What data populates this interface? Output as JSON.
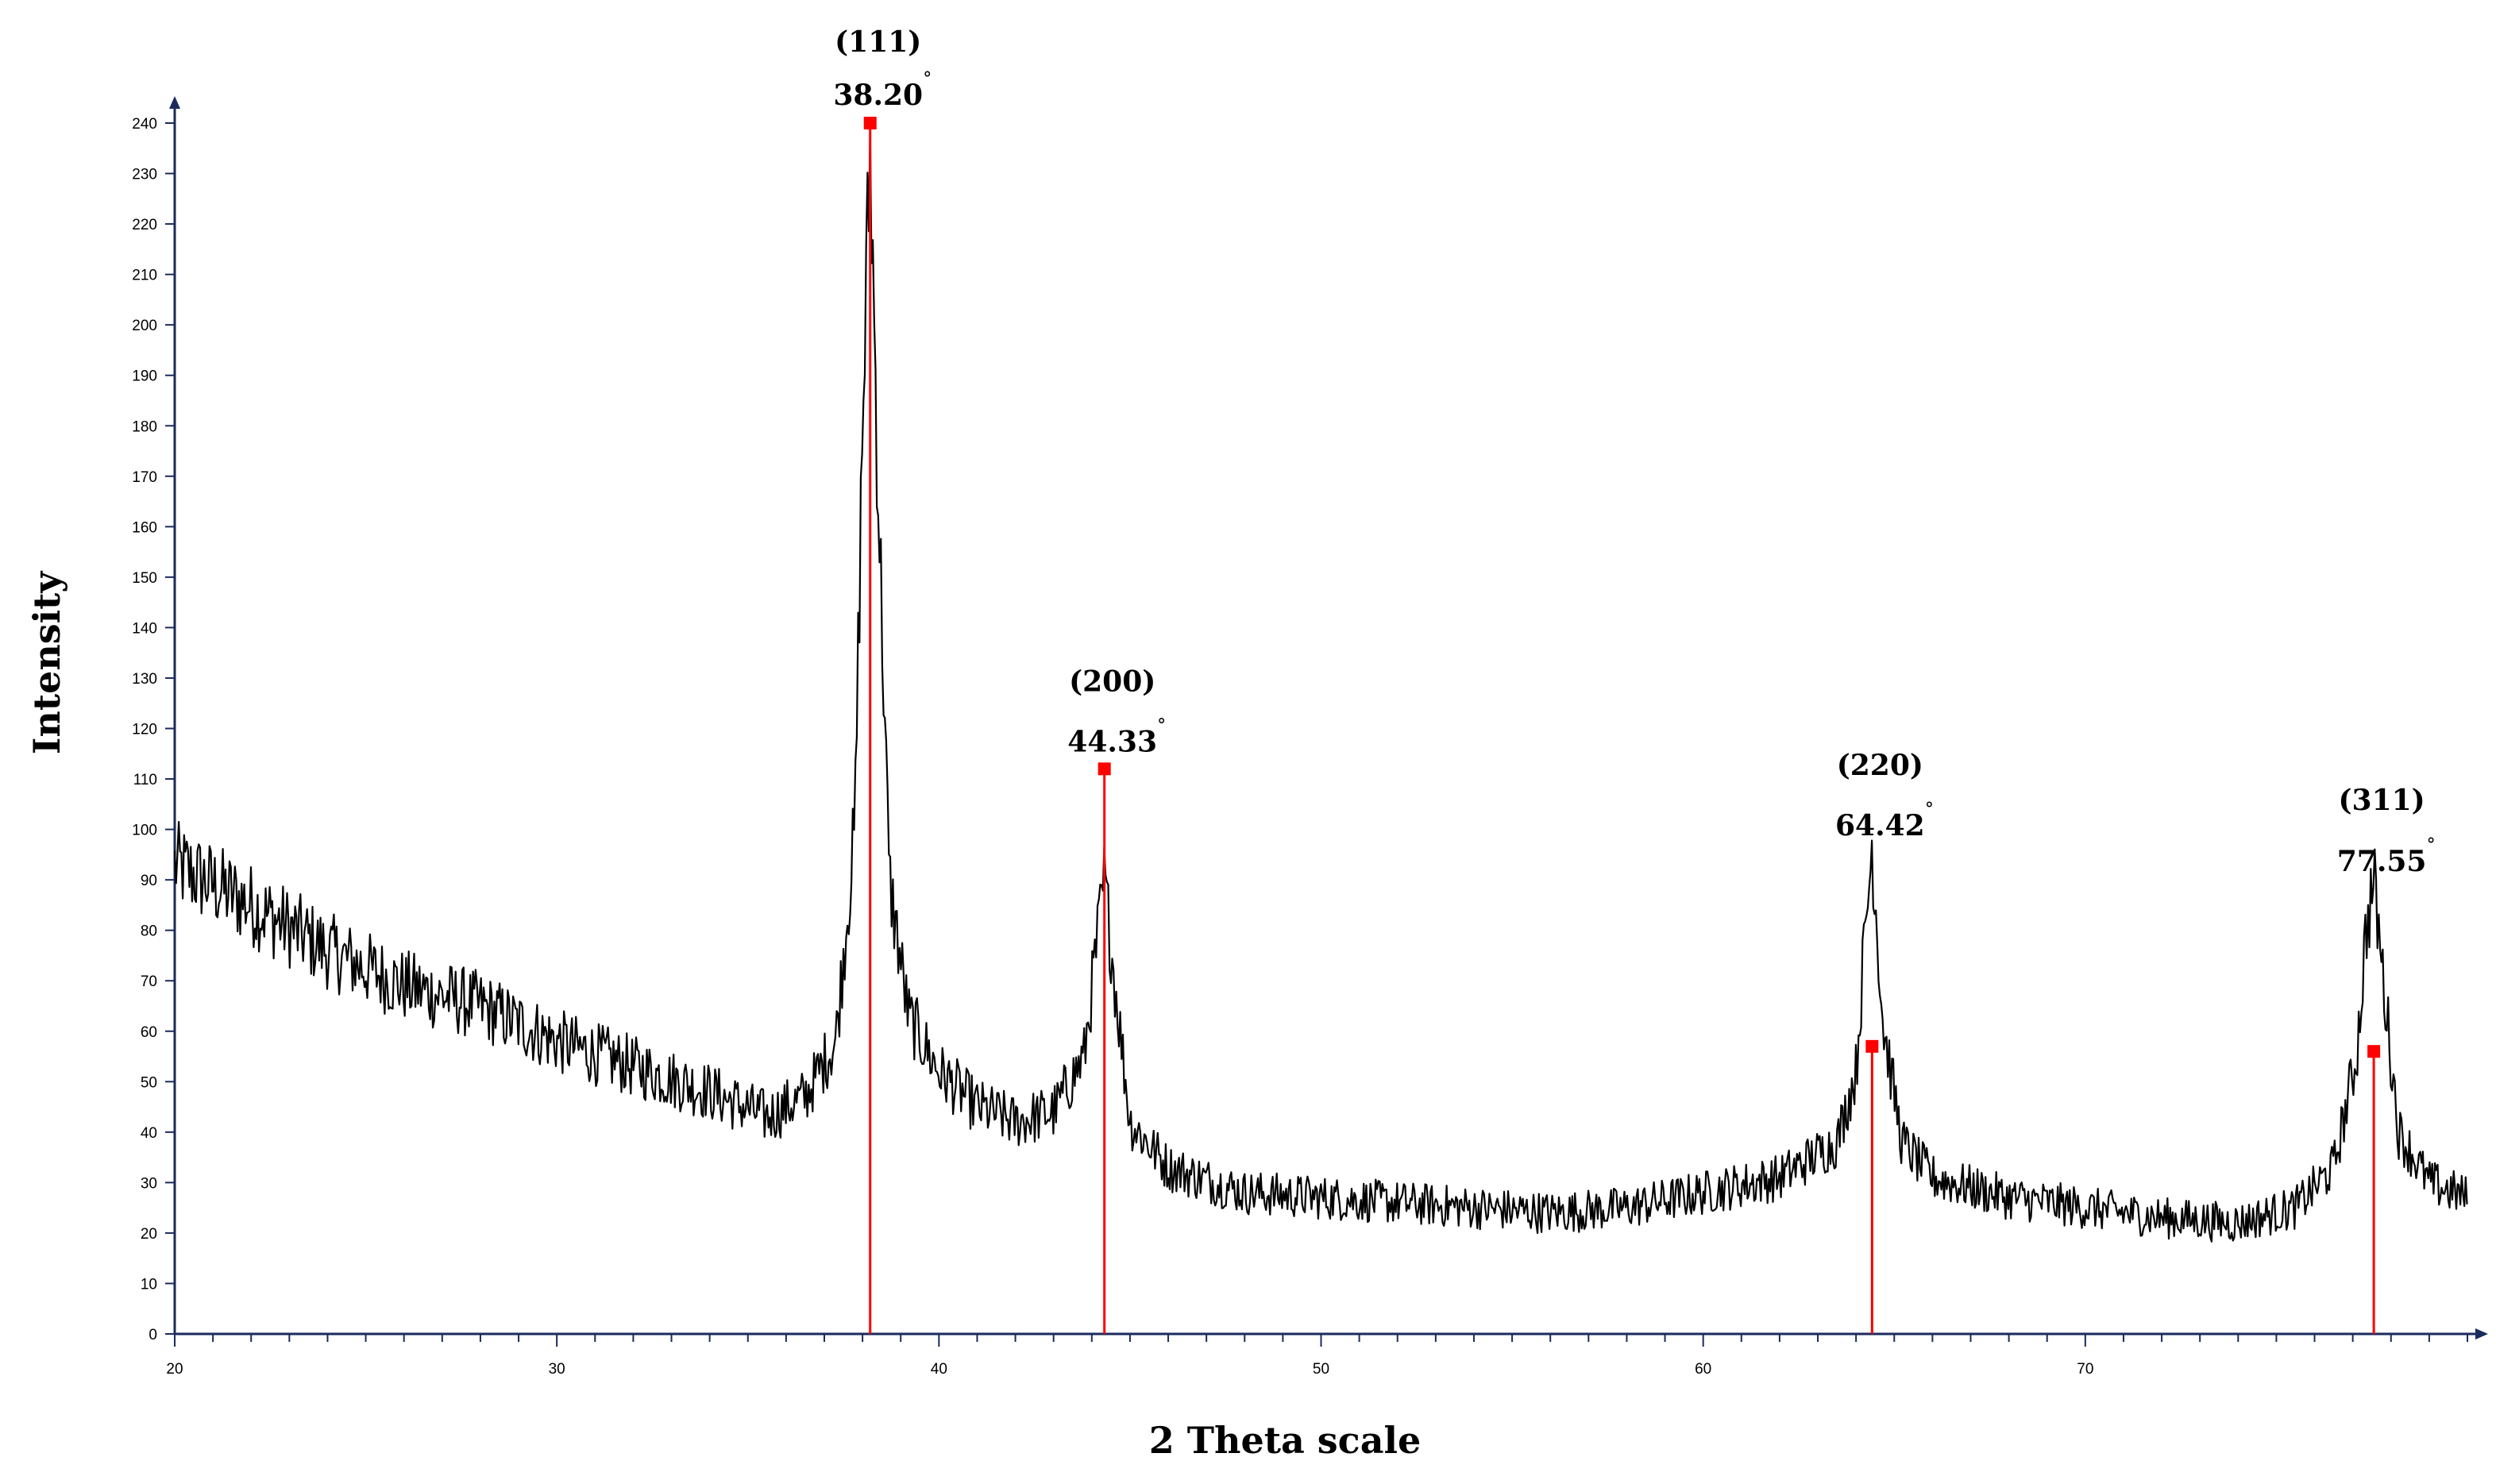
{
  "chart_data": {
    "type": "line",
    "xlabel": "2 Theta scale",
    "ylabel": "Intensity",
    "xlim": [
      20,
      80
    ],
    "ylim": [
      0,
      240
    ],
    "x_ticks": [
      20,
      30,
      40,
      50,
      60,
      70
    ],
    "y_ticks": [
      0,
      10,
      20,
      30,
      40,
      50,
      60,
      70,
      80,
      90,
      100,
      110,
      120,
      130,
      140,
      150,
      160,
      170,
      180,
      190,
      200,
      210,
      220,
      230,
      240
    ],
    "grid": false,
    "colors": {
      "pattern": "#000000",
      "reference": "#ff0000"
    },
    "pattern_profile": {
      "x": [
        20,
        22,
        24,
        26,
        28,
        30,
        32,
        34,
        35.5,
        36.5,
        37.3,
        37.8,
        38.0,
        38.2,
        38.4,
        38.7,
        39.2,
        40,
        41,
        42,
        43,
        43.8,
        44.1,
        44.33,
        44.6,
        45,
        46,
        48,
        50,
        52,
        54,
        56,
        58,
        60,
        62,
        63.5,
        64.0,
        64.2,
        64.42,
        64.7,
        65.2,
        66,
        68,
        70,
        72,
        74,
        75.5,
        76.5,
        77.1,
        77.35,
        77.55,
        77.8,
        78.2,
        79,
        80
      ],
      "y": [
        93,
        85,
        76,
        69,
        65,
        58,
        53,
        48,
        43,
        47,
        58,
        100,
        180,
        235,
        170,
        90,
        63,
        52,
        45,
        42,
        44,
        55,
        75,
        90,
        70,
        42,
        33,
        28,
        27,
        26,
        25,
        24,
        25,
        28,
        31,
        38,
        52,
        75,
        97,
        62,
        38,
        31,
        27,
        25,
        23,
        22,
        25,
        33,
        55,
        80,
        90,
        70,
        40,
        30,
        27
      ]
    },
    "reference_peaks": [
      {
        "hkl": "(111)",
        "angle": "38.20",
        "x": 38.2,
        "y": 240
      },
      {
        "hkl": "(200)",
        "angle": "44.33",
        "x": 44.33,
        "y": 112
      },
      {
        "hkl": "(220)",
        "angle": "64.42",
        "x": 64.42,
        "y": 57
      },
      {
        "hkl": "(311)",
        "angle": "77.55",
        "x": 77.55,
        "y": 56
      }
    ],
    "degree_symbol": "°"
  }
}
